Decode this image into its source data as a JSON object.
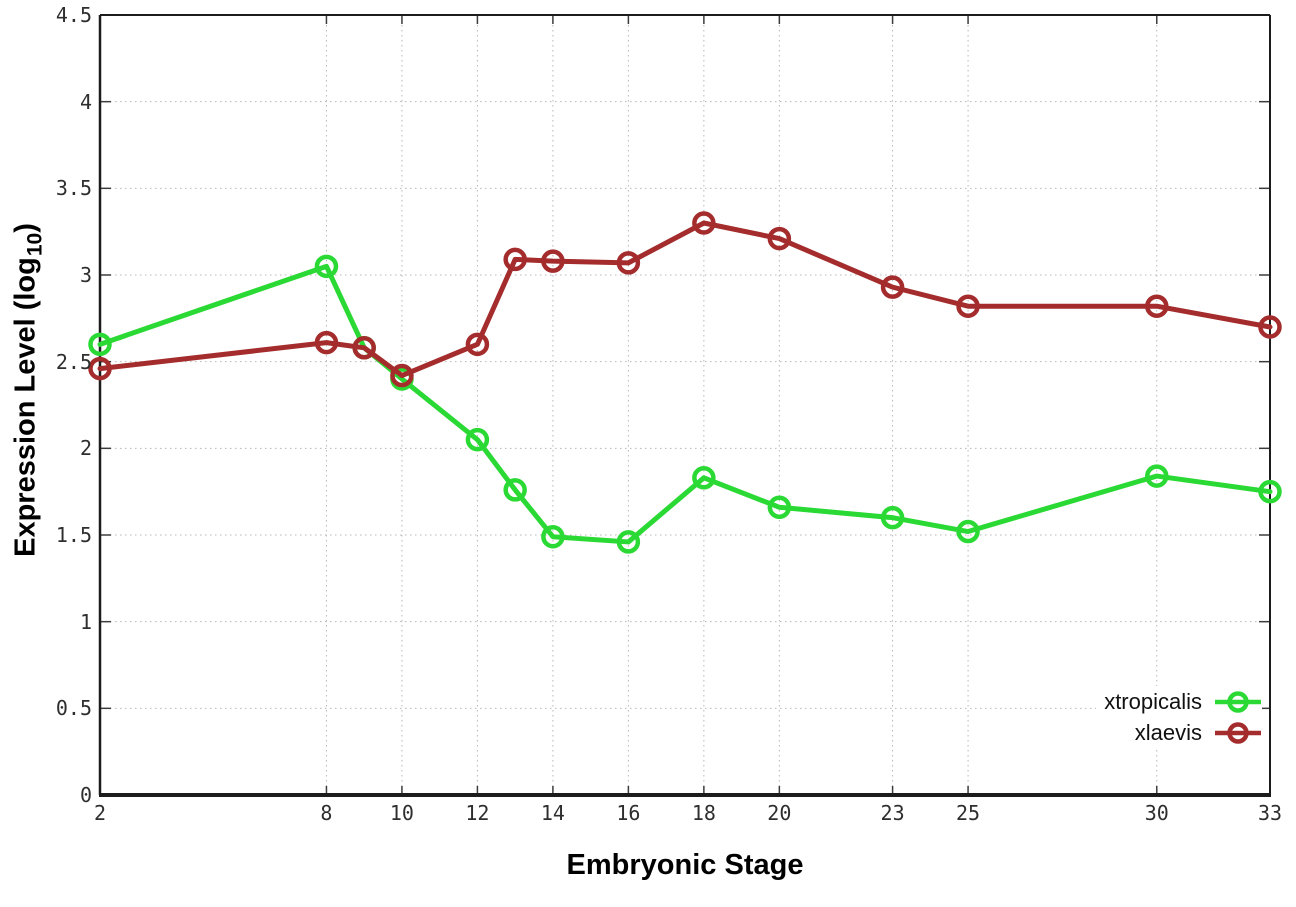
{
  "figure": {
    "background": "#ffffff",
    "axis_color": "#1c1c1c",
    "grid_color": "#b7b7b7",
    "tick_color": "#3c3c3c",
    "text_color": "#000000"
  },
  "chart_data": {
    "type": "line",
    "title": "",
    "xlabel": "Embryonic Stage",
    "ylabel": "Expression Level (log10)",
    "ylabel_parts": {
      "prefix": "Expression Level (log",
      "subscript": "10",
      "suffix": ")"
    },
    "xlim": [
      2,
      33
    ],
    "ylim": [
      0,
      4.5
    ],
    "x_ticks": [
      2,
      8,
      10,
      12,
      14,
      16,
      18,
      20,
      23,
      25,
      30,
      33
    ],
    "x_tick_labels": [
      "2",
      "8",
      "10",
      "12",
      "14",
      "16",
      "18",
      "20",
      "23",
      "25",
      "30",
      "33"
    ],
    "y_ticks": [
      0,
      0.5,
      1,
      1.5,
      2,
      2.5,
      3,
      3.5,
      4,
      4.5
    ],
    "y_tick_labels": [
      "0",
      "0.5",
      "1",
      "1.5",
      "2",
      "2.5",
      "3",
      "3.5",
      "4",
      "4.5"
    ],
    "grid": true,
    "legend_position": "inside-bottom-right",
    "marker": "open-circle",
    "x": [
      2,
      8,
      9,
      10,
      12,
      13,
      14,
      16,
      18,
      20,
      23,
      25,
      30,
      33
    ],
    "series": [
      {
        "name": "xtropicalis",
        "color": "#2bd935",
        "values": [
          2.6,
          3.05,
          2.58,
          2.4,
          2.05,
          1.76,
          1.49,
          1.46,
          1.83,
          1.66,
          1.6,
          1.52,
          1.84,
          1.75
        ]
      },
      {
        "name": "xlaevis",
        "color": "#a42c2c",
        "values": [
          2.46,
          2.61,
          2.58,
          2.42,
          2.6,
          3.09,
          3.08,
          3.07,
          3.3,
          3.21,
          2.93,
          2.82,
          2.82,
          2.7
        ]
      }
    ]
  }
}
